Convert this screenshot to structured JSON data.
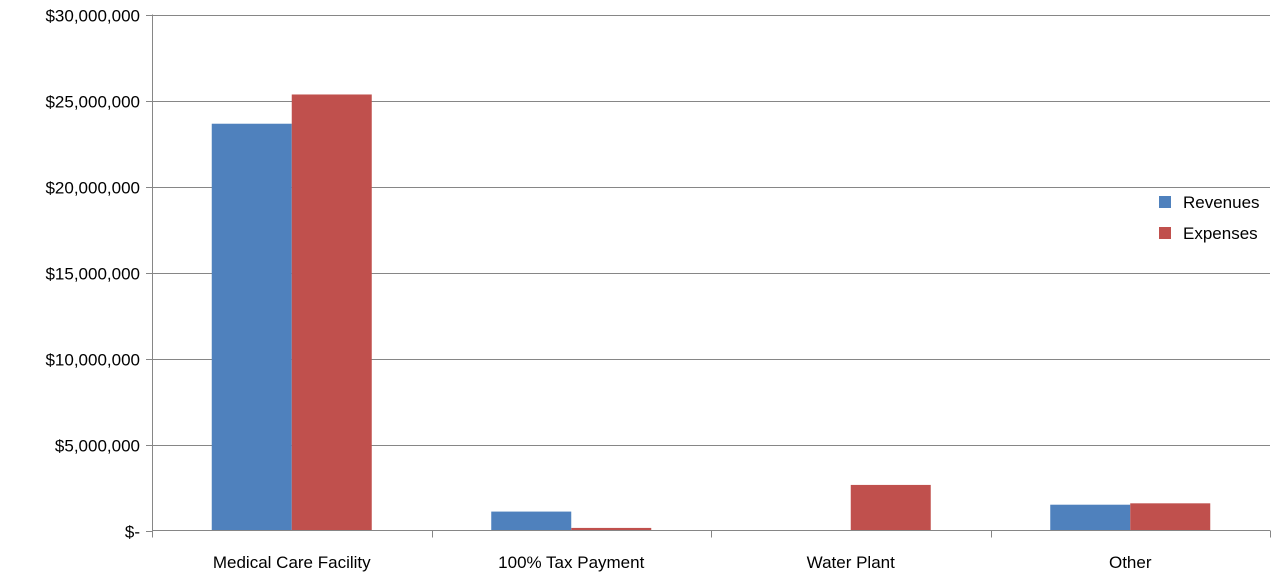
{
  "chart_data": {
    "type": "bar",
    "categories": [
      "Medical Care Facility",
      "100% Tax Payment",
      "Water Plant",
      "Other"
    ],
    "series": [
      {
        "name": "Revenues",
        "color": "#4f81bd",
        "values": [
          23650000,
          1100000,
          0,
          1500000
        ]
      },
      {
        "name": "Expenses",
        "color": "#c0504d",
        "values": [
          25350000,
          150000,
          2650000,
          1580000
        ]
      }
    ],
    "ylim": [
      0,
      30000000
    ],
    "yticks": [
      0,
      5000000,
      10000000,
      15000000,
      20000000,
      25000000,
      30000000
    ],
    "ytick_labels": [
      "$-",
      "$5,000,000",
      "$10,000,000",
      "$15,000,000",
      "$20,000,000",
      "$25,000,000",
      "$30,000,000"
    ],
    "grid": true,
    "gridline_color": "#868686",
    "legend": "right"
  }
}
